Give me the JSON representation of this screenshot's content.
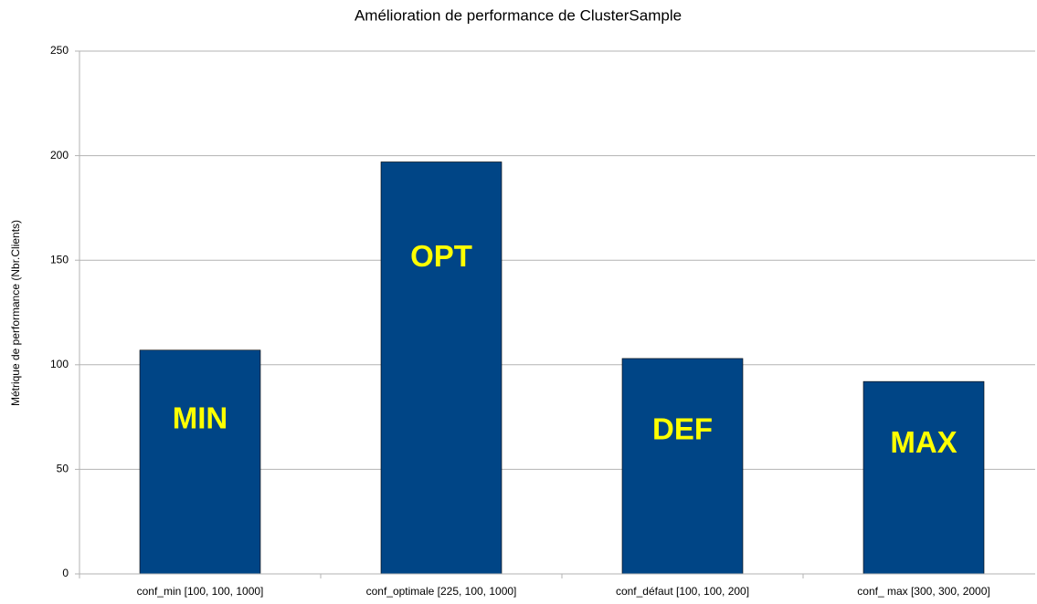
{
  "chart_data": {
    "type": "bar",
    "title": "Amélioration de performance de ClusterSample",
    "y_label": "Métrique de performance (Nbr.Clients)",
    "categories": [
      "conf_min [100, 100, 1000]",
      "conf_optimale [225, 100, 1000]",
      "conf_défaut [100, 100, 200]",
      "conf_ max [300, 300, 2000]"
    ],
    "values": [
      107,
      197,
      103,
      92
    ],
    "color": "#004586",
    "annotations": [
      "MIN",
      "OPT",
      "DEF",
      "MAX"
    ],
    "annotation_color": "#ffff00",
    "ylim": [
      0,
      250
    ],
    "yticks": [
      0,
      50,
      100,
      150,
      200,
      250
    ],
    "grid": true
  }
}
